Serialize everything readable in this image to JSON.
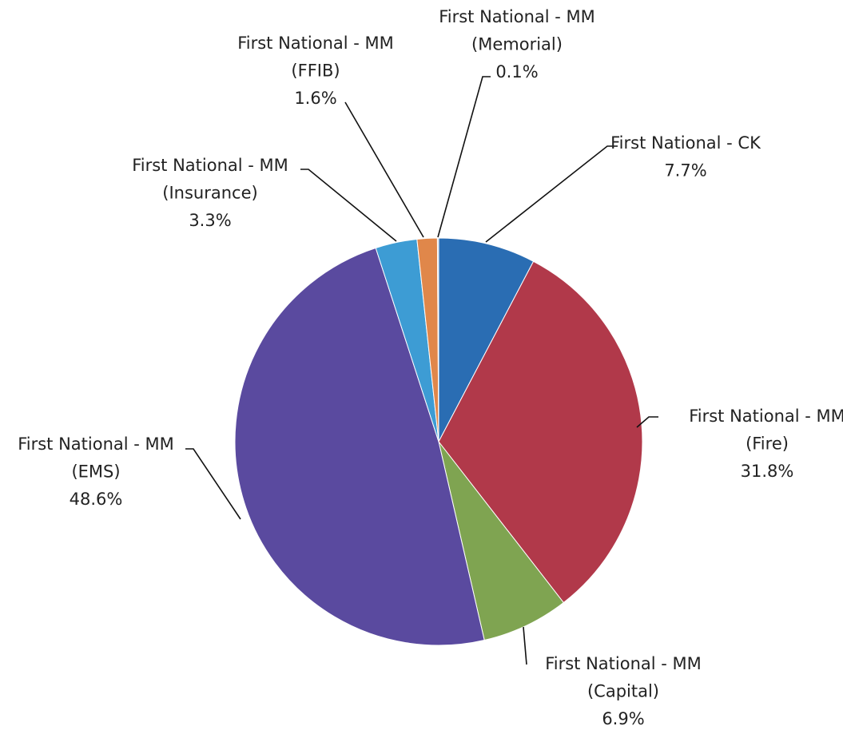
{
  "chart_data": {
    "type": "pie",
    "categories": [
      [
        "First National - CK"
      ],
      [
        "First National - MM",
        "(Fire)"
      ],
      [
        "First National - MM",
        "(Capital)"
      ],
      [
        "First National - MM",
        "(EMS)"
      ],
      [
        "First National - MM",
        "(Insurance)"
      ],
      [
        "First National - MM",
        "(FFIB)"
      ],
      [
        "First National - MM",
        "(Memorial)"
      ]
    ],
    "values": [
      7.7,
      31.8,
      6.9,
      48.6,
      3.3,
      1.6,
      0.1
    ],
    "value_labels": [
      "7.7%",
      "31.8%",
      "6.9%",
      "48.6%",
      "3.3%",
      "1.6%",
      "0.1%"
    ],
    "colors": [
      "#2a6db3",
      "#b1394a",
      "#7fa451",
      "#5a4a9f",
      "#3d9cd4",
      "#e0874a",
      "#b8cde6"
    ]
  }
}
